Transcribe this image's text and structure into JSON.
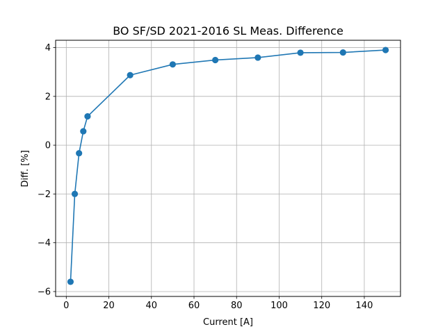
{
  "chart_data": {
    "type": "line",
    "title": "BO SF/SD 2021-2016 SL Meas. Difference",
    "xlabel": "Current [A]",
    "ylabel": "Diff. [%]",
    "xlim": [
      -5,
      157
    ],
    "ylim": [
      -6.2,
      4.3
    ],
    "xticks": [
      0,
      20,
      40,
      60,
      80,
      100,
      120,
      140
    ],
    "xtick_labels": [
      "0",
      "20",
      "40",
      "60",
      "80",
      "100",
      "120",
      "140"
    ],
    "yticks": [
      -6,
      -4,
      -2,
      0,
      2,
      4
    ],
    "ytick_labels": [
      "−6",
      "−4",
      "−2",
      "0",
      "2",
      "4"
    ],
    "grid": true,
    "series": [
      {
        "x": [
          2,
          4,
          6,
          8,
          10,
          30,
          50,
          70,
          90,
          110,
          130,
          150
        ],
        "y": [
          -5.6,
          -2.0,
          -0.33,
          0.57,
          1.18,
          2.87,
          3.31,
          3.49,
          3.59,
          3.79,
          3.8,
          3.9
        ],
        "color": "#1f77b4",
        "marker": "circle"
      }
    ]
  }
}
